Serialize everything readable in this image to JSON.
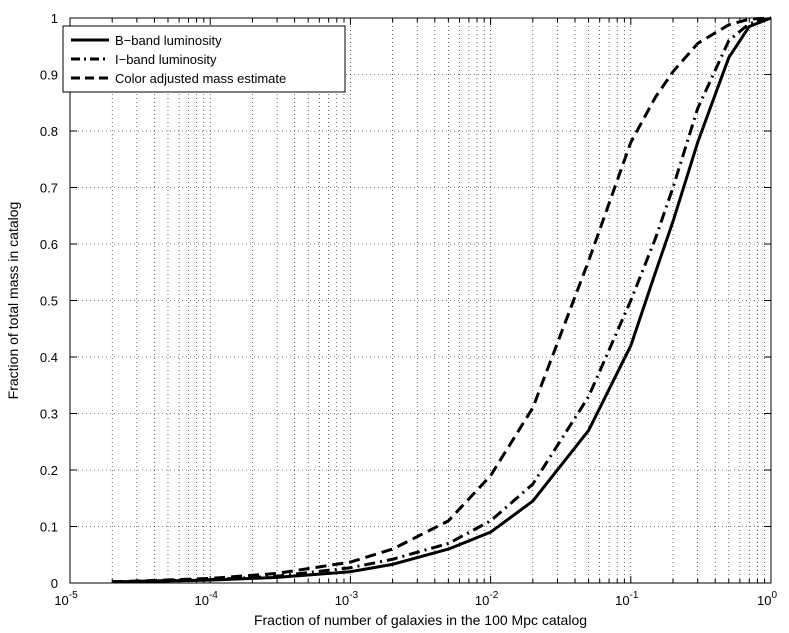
{
  "chart_data": {
    "type": "line",
    "x_scale": "log",
    "xlabel": "Fraction of number of galaxies in the 100 Mpc catalog",
    "ylabel": "Fraction of total mass in catalog",
    "xlim": [
      1e-05,
      1
    ],
    "ylim": [
      0,
      1
    ],
    "grid": true,
    "legend_position": "top-left",
    "x_ticks": [
      {
        "value": 1e-05,
        "base": "10",
        "exp": "-5"
      },
      {
        "value": 0.0001,
        "base": "10",
        "exp": "-4"
      },
      {
        "value": 0.001,
        "base": "10",
        "exp": "-3"
      },
      {
        "value": 0.01,
        "base": "10",
        "exp": "-2"
      },
      {
        "value": 0.1,
        "base": "10",
        "exp": "-1"
      },
      {
        "value": 1,
        "base": "10",
        "exp": "0"
      }
    ],
    "y_ticks": [
      "0",
      "0.1",
      "0.2",
      "0.3",
      "0.4",
      "0.5",
      "0.6",
      "0.7",
      "0.8",
      "0.9",
      "1"
    ],
    "series": [
      {
        "name": "B−band luminosity",
        "style": "solid",
        "x": [
          2e-05,
          0.0001,
          0.0003,
          0.001,
          0.002,
          0.005,
          0.01,
          0.02,
          0.05,
          0.1,
          0.15,
          0.2,
          0.3,
          0.5,
          0.7,
          1.0
        ],
        "y": [
          0.002,
          0.005,
          0.01,
          0.02,
          0.033,
          0.06,
          0.09,
          0.145,
          0.27,
          0.42,
          0.55,
          0.64,
          0.78,
          0.93,
          0.985,
          1.0
        ]
      },
      {
        "name": "I−band luminosity",
        "style": "dashdot",
        "x": [
          2e-05,
          0.0001,
          0.0003,
          0.001,
          0.002,
          0.005,
          0.01,
          0.02,
          0.05,
          0.1,
          0.15,
          0.2,
          0.3,
          0.5,
          0.7,
          1.0
        ],
        "y": [
          0.002,
          0.006,
          0.012,
          0.027,
          0.042,
          0.07,
          0.11,
          0.175,
          0.33,
          0.5,
          0.61,
          0.7,
          0.84,
          0.96,
          0.99,
          1.0
        ]
      },
      {
        "name": "Color adjusted mass estimate",
        "style": "dashed",
        "x": [
          2e-05,
          0.0001,
          0.0003,
          0.001,
          0.002,
          0.005,
          0.01,
          0.02,
          0.05,
          0.1,
          0.15,
          0.2,
          0.3,
          0.5,
          0.7,
          1.0
        ],
        "y": [
          0.002,
          0.008,
          0.017,
          0.037,
          0.06,
          0.11,
          0.19,
          0.31,
          0.57,
          0.78,
          0.86,
          0.905,
          0.955,
          0.988,
          0.998,
          1.0
        ]
      }
    ]
  }
}
